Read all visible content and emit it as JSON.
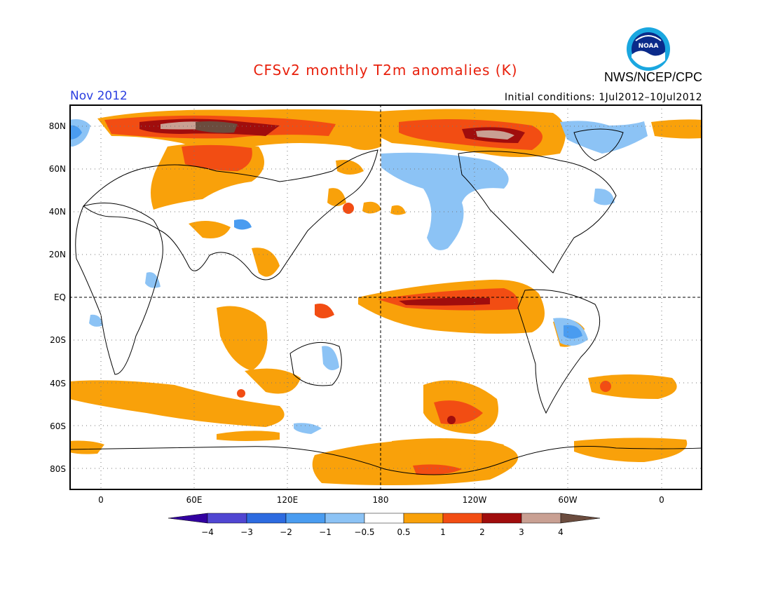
{
  "title": "CFSv2 monthly T2m anomalies (K)",
  "agency": "NWS/NCEP/CPC",
  "logo_text": "NOAA",
  "month": "Nov 2012",
  "initial_conditions": "Initial conditions: 1Jul2012–10Jul2012",
  "lat_labels": [
    "80N",
    "60N",
    "40N",
    "20N",
    "EQ",
    "20S",
    "40S",
    "60S",
    "80S"
  ],
  "lon_labels": [
    "0",
    "60E",
    "120E",
    "180",
    "120W",
    "60W",
    "0"
  ],
  "colorbar": {
    "labels": [
      "−4",
      "−3",
      "−2",
      "−1",
      "−0.5",
      "0.5",
      "1",
      "2",
      "3",
      "4"
    ],
    "colors": [
      "#3200a0",
      "#5046d2",
      "#2d6be0",
      "#4a9cf0",
      "#8cc3f5",
      "#ffffff",
      "#f9a10a",
      "#f24d13",
      "#a00d0d",
      "#c9a093",
      "#6b4c3e"
    ]
  },
  "colors": {
    "title": "#e8200c",
    "month": "#2a3ee0",
    "warm_1": "#f9a10a",
    "warm_2": "#f24d13",
    "warm_3": "#a00d0d",
    "warm_4": "#c9a093",
    "warm_5": "#6b4c3e",
    "cool_1": "#8cc3f5",
    "cool_2": "#4a9cf0",
    "cool_3": "#2d6be0"
  }
}
